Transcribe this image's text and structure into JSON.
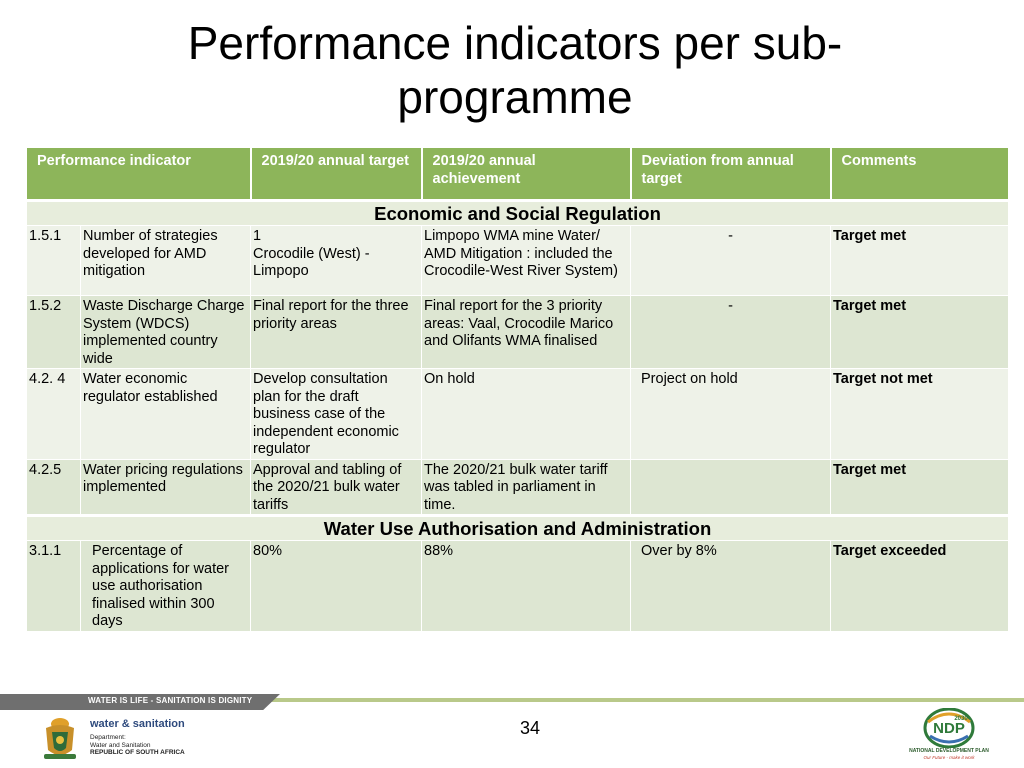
{
  "slide": {
    "title": "Performance indicators per sub-programme",
    "page_number": "34"
  },
  "table": {
    "headers": [
      "Performance indicator",
      "2019/20 annual target",
      "2019/20 annual achievement",
      "Deviation from annual target",
      "Comments"
    ],
    "sections": [
      {
        "title": "Economic and Social Regulation",
        "rows": [
          {
            "num": "1.5.1",
            "indicator": "Number of strategies developed for AMD mitigation",
            "target": "1\nCrocodile (West) - Limpopo",
            "achievement": "Limpopo WMA mine Water/ AMD Mitigation : included the Crocodile-West River System)",
            "deviation": "-",
            "comment": "Target met"
          },
          {
            "num": "1.5.2",
            "indicator": "Waste Discharge Charge System (WDCS) implemented country wide",
            "target": "Final report for the three priority areas",
            "achievement": "Final report for the 3 priority areas:  Vaal, Crocodile Marico and Olifants WMA finalised",
            "deviation": "-",
            "comment": "Target met"
          },
          {
            "num": "4.2. 4",
            "indicator": "Water economic regulator established",
            "target": "Develop consultation plan for the draft business case of the independent economic regulator",
            "achievement": "On hold",
            "deviation": "Project on hold",
            "comment": "Target not met"
          },
          {
            "num": "4.2.5",
            "indicator": "Water pricing regulations implemented",
            "target": "Approval  and  tabling of the 2020/21 bulk water tariffs",
            "achievement": "The 2020/21 bulk water tariff was tabled in parliament in time.",
            "deviation": "",
            "comment": "Target met"
          }
        ]
      },
      {
        "title": "Water Use Authorisation and Administration",
        "rows": [
          {
            "num": "3.1.1",
            "indicator": "Percentage of applications for water use authorisation finalised within 300 days",
            "target": "80%",
            "achievement": "88%",
            "deviation": "Over by 8%",
            "comment": "Target exceeded"
          }
        ]
      }
    ]
  },
  "footer": {
    "slogan": "WATER IS LIFE - SANITATION IS DIGNITY",
    "dept_name": "water & sanitation",
    "dept_line1": "Department:",
    "dept_line2": "Water and Sanitation",
    "dept_line3": "REPUBLIC OF SOUTH AFRICA",
    "ndp_name": "NATIONAL DEVELOPMENT PLAN",
    "ndp_tagline": "Our Future - make it work",
    "ndp_year": "2030",
    "ndp_letters": "NDP"
  },
  "colors": {
    "header_green": "#8db55a",
    "row_light": "#eef2e8",
    "row_dark": "#dde6d2",
    "section_bg": "#e7eddc"
  }
}
